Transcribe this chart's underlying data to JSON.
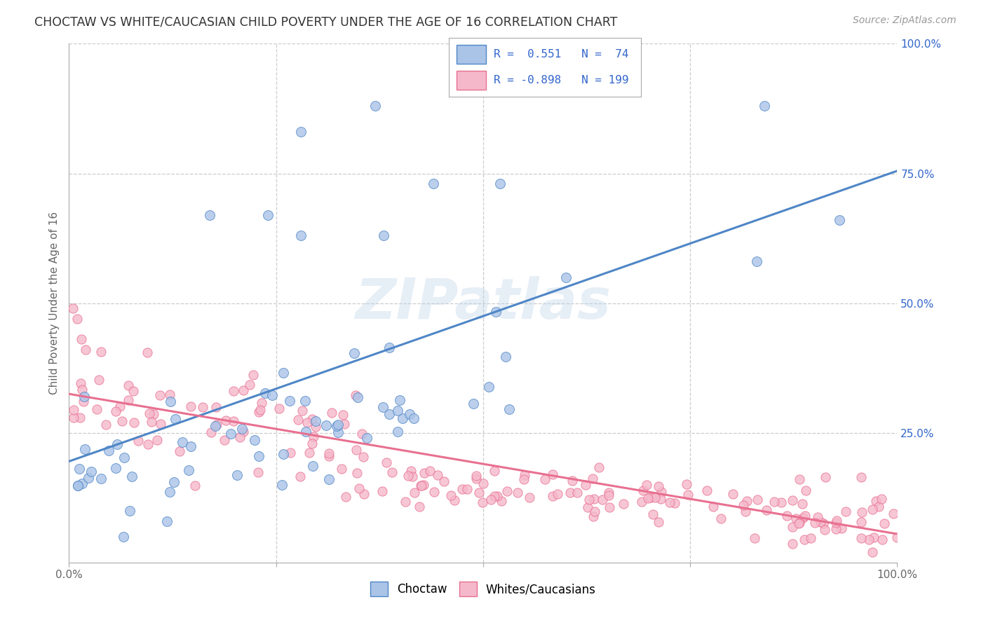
{
  "title": "CHOCTAW VS WHITE/CAUCASIAN CHILD POVERTY UNDER THE AGE OF 16 CORRELATION CHART",
  "source": "Source: ZipAtlas.com",
  "ylabel": "Child Poverty Under the Age of 16",
  "xlim": [
    0,
    1
  ],
  "ylim": [
    0,
    1
  ],
  "xtick_positions": [
    0.0,
    0.25,
    0.5,
    0.75,
    1.0
  ],
  "xtick_labels": [
    "0.0%",
    "",
    "",
    "",
    "100.0%"
  ],
  "ytick_positions_right": [
    1.0,
    0.75,
    0.5,
    0.25,
    0.0
  ],
  "ytick_labels_right": [
    "100.0%",
    "75.0%",
    "50.0%",
    "25.0%",
    ""
  ],
  "choctaw_color": "#4f86c6",
  "choctaw_color_fill": "#aac4e8",
  "white_color": "#e87090",
  "white_color_fill": "#f5b8cb",
  "choctaw_R": 0.551,
  "choctaw_N": 74,
  "white_R": -0.898,
  "white_N": 199,
  "legend_text_color": "#3366CC",
  "watermark_text": "ZIPatlas",
  "background_color": "#ffffff",
  "grid_color": "#cccccc",
  "choctaw_line_x": [
    0.0,
    1.0
  ],
  "choctaw_line_y": [
    0.195,
    0.755
  ],
  "white_line_x": [
    0.0,
    1.0
  ],
  "white_line_y": [
    0.325,
    0.055
  ]
}
